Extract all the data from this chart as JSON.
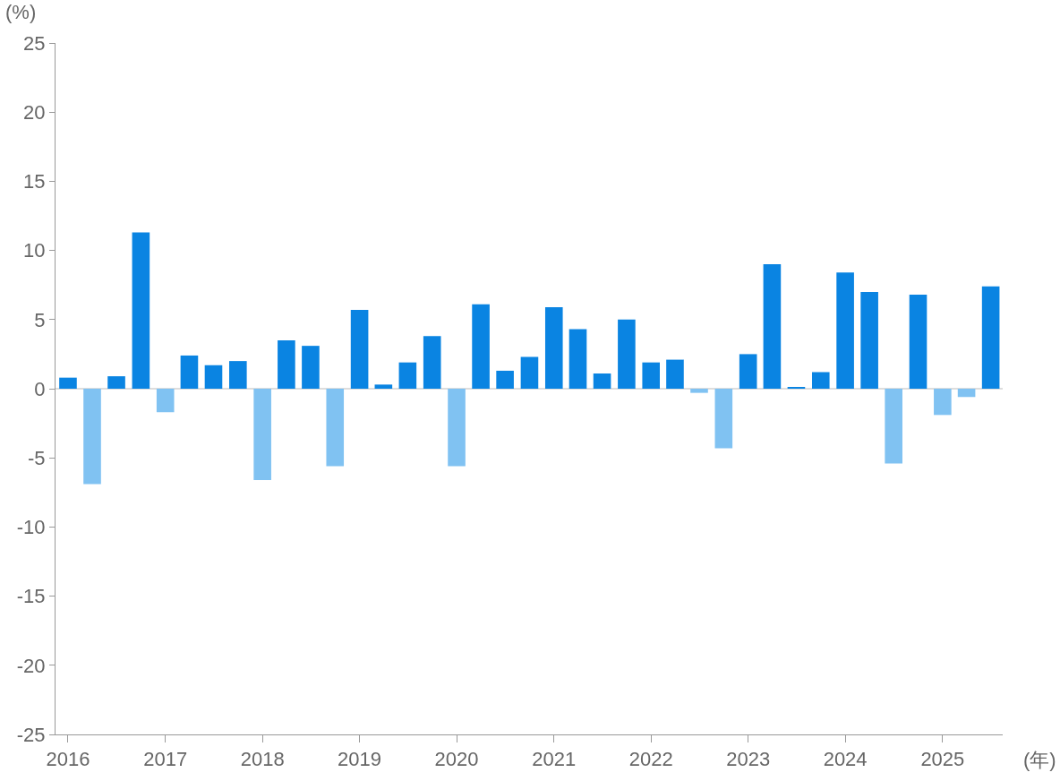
{
  "chart_data": {
    "type": "bar",
    "ylabel": "(%)",
    "xlabel": "(年)",
    "x": [
      "2016-01",
      "2016-04",
      "2016-07",
      "2016-10",
      "2017-01",
      "2017-04",
      "2017-07",
      "2017-10",
      "2018-01",
      "2018-04",
      "2018-07",
      "2018-10",
      "2019-01",
      "2019-04",
      "2019-07",
      "2019-10",
      "2020-01",
      "2020-04",
      "2020-07",
      "2020-10",
      "2021-01",
      "2021-04",
      "2021-07",
      "2021-10",
      "2022-01",
      "2022-04",
      "2022-07",
      "2022-10",
      "2023-01",
      "2023-04",
      "2023-07",
      "2023-10",
      "2024-01",
      "2024-04",
      "2024-07",
      "2024-10",
      "2025-01",
      "2025-04",
      "2025-07"
    ],
    "values": [
      0.8,
      -6.9,
      0.9,
      11.3,
      -1.7,
      2.4,
      1.7,
      2.0,
      -6.6,
      3.5,
      3.1,
      -5.6,
      5.7,
      0.3,
      1.9,
      3.8,
      -5.6,
      6.1,
      1.3,
      2.3,
      5.9,
      4.3,
      1.1,
      5.0,
      1.9,
      2.1,
      -0.3,
      -4.3,
      2.5,
      9.0,
      0.1,
      1.2,
      8.4,
      7.0,
      -5.4,
      6.8,
      -1.9,
      -0.6,
      7.4
    ],
    "colors": [
      "#0a84e2",
      "#80c2f2",
      "#0a84e2",
      "#0a84e2",
      "#80c2f2",
      "#0a84e2",
      "#0a84e2",
      "#0a84e2",
      "#80c2f2",
      "#0a84e2",
      "#0a84e2",
      "#80c2f2",
      "#0a84e2",
      "#0a84e2",
      "#0a84e2",
      "#0a84e2",
      "#80c2f2",
      "#0a84e2",
      "#0a84e2",
      "#0a84e2",
      "#0a84e2",
      "#0a84e2",
      "#0a84e2",
      "#0a84e2",
      "#0a84e2",
      "#0a84e2",
      "#80c2f2",
      "#80c2f2",
      "#0a84e2",
      "#0a84e2",
      "#0a84e2",
      "#0a84e2",
      "#0a84e2",
      "#0a84e2",
      "#80c2f2",
      "#0a84e2",
      "#80c2f2",
      "#80c2f2",
      "#0a84e2"
    ],
    "xlim": [
      "2015-11-15",
      "2025-08-15"
    ],
    "xticks": [
      {
        "value": "2016",
        "label": "2016"
      },
      {
        "value": "2017",
        "label": "2017"
      },
      {
        "value": "2018",
        "label": "2018"
      },
      {
        "value": "2019",
        "label": "2019"
      },
      {
        "value": "2020",
        "label": "2020"
      },
      {
        "value": "2021",
        "label": "2021"
      },
      {
        "value": "2022",
        "label": "2022"
      },
      {
        "value": "2023",
        "label": "2023"
      },
      {
        "value": "2024",
        "label": "2024"
      },
      {
        "value": "2025",
        "label": "2025"
      }
    ],
    "ylim": [
      -25,
      25
    ],
    "yticks": [
      -25,
      -20,
      -15,
      -10,
      -5,
      0,
      5,
      10,
      15,
      20,
      25
    ],
    "ref_lines": [
      {
        "axis": "y",
        "value": 0,
        "color": "#bbbbbb"
      }
    ],
    "grid": false
  }
}
